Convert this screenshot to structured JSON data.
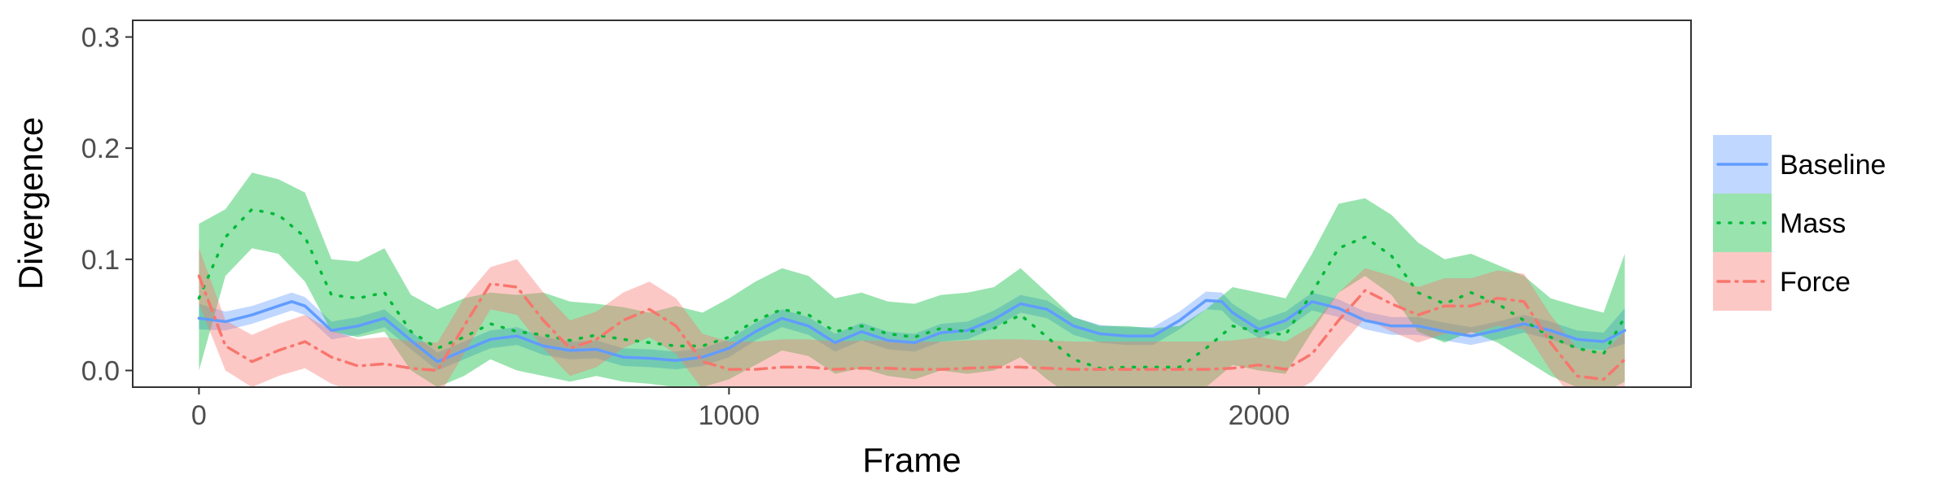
{
  "chart_data": {
    "type": "line",
    "title": "",
    "xlabel": "Frame",
    "ylabel": "Divergence",
    "xlim": [
      -125,
      2815
    ],
    "ylim": [
      -0.015,
      0.315
    ],
    "x_ticks": [
      0,
      1000,
      2000
    ],
    "x_tick_labels": [
      "0",
      "1000",
      "2000"
    ],
    "y_ticks": [
      0.0,
      0.1,
      0.2,
      0.3
    ],
    "y_tick_labels": [
      "0.0",
      "0.1",
      "0.2",
      "0.3"
    ],
    "grid": false,
    "legend_position": "right",
    "series": [
      {
        "name": "Baseline",
        "color": "#619cff",
        "dash": "solid",
        "x": [
          0,
          50,
          100,
          150,
          175,
          200,
          250,
          300,
          350,
          400,
          450,
          500,
          550,
          600,
          650,
          700,
          750,
          800,
          850,
          900,
          950,
          1000,
          1050,
          1100,
          1150,
          1200,
          1250,
          1300,
          1350,
          1400,
          1450,
          1500,
          1550,
          1600,
          1650,
          1700,
          1750,
          1800,
          1850,
          1900,
          1930,
          1950,
          2000,
          2050,
          2100,
          2150,
          2200,
          2250,
          2300,
          2350,
          2400,
          2450,
          2500,
          2550,
          2600,
          2650,
          2690
        ],
        "y": [
          0.047,
          0.044,
          0.05,
          0.058,
          0.062,
          0.058,
          0.036,
          0.04,
          0.047,
          0.027,
          0.008,
          0.018,
          0.028,
          0.031,
          0.022,
          0.018,
          0.019,
          0.012,
          0.011,
          0.009,
          0.012,
          0.02,
          0.035,
          0.047,
          0.04,
          0.025,
          0.035,
          0.027,
          0.025,
          0.034,
          0.036,
          0.046,
          0.06,
          0.055,
          0.04,
          0.033,
          0.031,
          0.031,
          0.045,
          0.063,
          0.062,
          0.052,
          0.037,
          0.045,
          0.062,
          0.056,
          0.045,
          0.04,
          0.04,
          0.035,
          0.031,
          0.036,
          0.042,
          0.036,
          0.028,
          0.026,
          0.036
        ],
        "lower": [
          0.037,
          0.036,
          0.042,
          0.05,
          0.054,
          0.05,
          0.028,
          0.032,
          0.039,
          0.019,
          0.0,
          0.01,
          0.02,
          0.023,
          0.014,
          0.01,
          0.011,
          0.004,
          0.003,
          0.001,
          0.004,
          0.012,
          0.027,
          0.039,
          0.032,
          0.017,
          0.027,
          0.019,
          0.017,
          0.026,
          0.028,
          0.038,
          0.052,
          0.047,
          0.032,
          0.025,
          0.023,
          0.023,
          0.037,
          0.055,
          0.054,
          0.044,
          0.029,
          0.037,
          0.054,
          0.048,
          0.037,
          0.032,
          0.032,
          0.027,
          0.023,
          0.028,
          0.034,
          0.028,
          0.02,
          0.018,
          0.024
        ],
        "upper": [
          0.06,
          0.053,
          0.058,
          0.066,
          0.07,
          0.066,
          0.044,
          0.048,
          0.055,
          0.035,
          0.016,
          0.026,
          0.036,
          0.039,
          0.03,
          0.026,
          0.027,
          0.02,
          0.019,
          0.017,
          0.02,
          0.028,
          0.043,
          0.055,
          0.048,
          0.033,
          0.043,
          0.035,
          0.033,
          0.042,
          0.044,
          0.054,
          0.068,
          0.063,
          0.048,
          0.041,
          0.039,
          0.039,
          0.053,
          0.071,
          0.07,
          0.06,
          0.045,
          0.053,
          0.07,
          0.064,
          0.053,
          0.048,
          0.048,
          0.043,
          0.039,
          0.044,
          0.05,
          0.044,
          0.036,
          0.034,
          0.056
        ]
      },
      {
        "name": "Mass",
        "color": "#00ba38",
        "dash": "dotted",
        "x": [
          0,
          50,
          100,
          150,
          200,
          250,
          300,
          350,
          400,
          450,
          500,
          550,
          600,
          650,
          700,
          750,
          800,
          850,
          900,
          950,
          1000,
          1050,
          1100,
          1150,
          1200,
          1250,
          1300,
          1350,
          1400,
          1450,
          1500,
          1550,
          1600,
          1650,
          1700,
          1750,
          1800,
          1850,
          1900,
          1950,
          2000,
          2050,
          2100,
          2150,
          2200,
          2250,
          2300,
          2350,
          2400,
          2450,
          2500,
          2550,
          2600,
          2650,
          2690
        ],
        "y": [
          0.065,
          0.12,
          0.145,
          0.14,
          0.12,
          0.068,
          0.065,
          0.07,
          0.035,
          0.02,
          0.03,
          0.042,
          0.035,
          0.032,
          0.027,
          0.032,
          0.028,
          0.025,
          0.022,
          0.022,
          0.03,
          0.045,
          0.055,
          0.05,
          0.035,
          0.04,
          0.033,
          0.03,
          0.038,
          0.035,
          0.038,
          0.05,
          0.03,
          0.01,
          0.002,
          0.003,
          0.003,
          0.003,
          0.02,
          0.04,
          0.035,
          0.032,
          0.07,
          0.11,
          0.12,
          0.103,
          0.07,
          0.06,
          0.07,
          0.06,
          0.045,
          0.03,
          0.02,
          0.015,
          0.048
        ],
        "lower": [
          0.0,
          0.085,
          0.11,
          0.105,
          0.08,
          0.035,
          0.03,
          0.035,
          0.0,
          -0.015,
          -0.005,
          0.01,
          0.0,
          -0.005,
          -0.01,
          -0.005,
          -0.01,
          -0.012,
          -0.015,
          -0.015,
          -0.008,
          0.005,
          0.018,
          0.013,
          -0.003,
          0.002,
          -0.005,
          -0.008,
          0.0,
          -0.003,
          0.0,
          0.012,
          -0.008,
          -0.025,
          -0.035,
          -0.035,
          -0.035,
          -0.035,
          -0.015,
          0.005,
          0.0,
          -0.003,
          0.035,
          0.07,
          0.085,
          0.068,
          0.035,
          0.025,
          0.035,
          0.025,
          0.01,
          -0.005,
          -0.015,
          -0.02,
          -0.01
        ],
        "upper": [
          0.132,
          0.145,
          0.178,
          0.172,
          0.16,
          0.1,
          0.098,
          0.11,
          0.068,
          0.055,
          0.065,
          0.07,
          0.068,
          0.07,
          0.062,
          0.06,
          0.057,
          0.052,
          0.058,
          0.052,
          0.065,
          0.08,
          0.092,
          0.085,
          0.065,
          0.07,
          0.062,
          0.06,
          0.068,
          0.07,
          0.075,
          0.092,
          0.07,
          0.048,
          0.04,
          0.04,
          0.038,
          0.04,
          0.055,
          0.075,
          0.07,
          0.065,
          0.105,
          0.15,
          0.155,
          0.14,
          0.115,
          0.1,
          0.105,
          0.095,
          0.085,
          0.065,
          0.058,
          0.052,
          0.105
        ]
      },
      {
        "name": "Force",
        "color": "#f8766d",
        "dash": "dashdot",
        "x": [
          0,
          50,
          100,
          150,
          200,
          250,
          300,
          350,
          400,
          450,
          500,
          550,
          600,
          650,
          700,
          750,
          800,
          850,
          900,
          950,
          1000,
          1050,
          1100,
          1150,
          1200,
          1250,
          1300,
          1350,
          1400,
          1450,
          1500,
          1550,
          1600,
          1650,
          1700,
          1750,
          1800,
          1850,
          1900,
          1950,
          2000,
          2050,
          2100,
          2150,
          2200,
          2250,
          2300,
          2350,
          2400,
          2450,
          2500,
          2550,
          2600,
          2650,
          2690
        ],
        "y": [
          0.085,
          0.022,
          0.008,
          0.018,
          0.026,
          0.012,
          0.004,
          0.006,
          0.002,
          0.0,
          0.04,
          0.078,
          0.075,
          0.045,
          0.02,
          0.028,
          0.045,
          0.055,
          0.04,
          0.008,
          0.001,
          0.001,
          0.003,
          0.003,
          0.001,
          0.002,
          0.002,
          0.001,
          0.001,
          0.002,
          0.003,
          0.003,
          0.002,
          0.001,
          0.001,
          0.001,
          0.001,
          0.001,
          0.001,
          0.002,
          0.005,
          0.001,
          0.015,
          0.045,
          0.072,
          0.06,
          0.05,
          0.058,
          0.058,
          0.065,
          0.062,
          0.025,
          -0.005,
          -0.008,
          0.01
        ],
        "lower": [
          0.06,
          0.0,
          -0.015,
          -0.005,
          0.002,
          -0.012,
          -0.02,
          -0.018,
          -0.022,
          -0.025,
          0.015,
          0.055,
          0.05,
          0.02,
          -0.005,
          0.003,
          0.02,
          0.03,
          0.015,
          -0.017,
          -0.024,
          -0.024,
          -0.022,
          -0.022,
          -0.024,
          -0.023,
          -0.023,
          -0.024,
          -0.024,
          -0.023,
          -0.022,
          -0.022,
          -0.023,
          -0.024,
          -0.024,
          -0.024,
          -0.024,
          -0.024,
          -0.024,
          -0.023,
          -0.02,
          -0.024,
          -0.01,
          0.02,
          0.047,
          0.035,
          0.025,
          0.033,
          0.033,
          0.04,
          0.037,
          0.0,
          -0.03,
          -0.033,
          -0.02
        ],
        "upper": [
          0.11,
          0.045,
          0.032,
          0.042,
          0.05,
          0.036,
          0.028,
          0.03,
          0.026,
          0.025,
          0.065,
          0.093,
          0.1,
          0.07,
          0.045,
          0.053,
          0.07,
          0.08,
          0.065,
          0.033,
          0.026,
          0.026,
          0.028,
          0.028,
          0.026,
          0.027,
          0.027,
          0.026,
          0.026,
          0.027,
          0.028,
          0.028,
          0.027,
          0.026,
          0.026,
          0.026,
          0.026,
          0.026,
          0.026,
          0.027,
          0.03,
          0.026,
          0.04,
          0.07,
          0.092,
          0.085,
          0.075,
          0.083,
          0.083,
          0.09,
          0.087,
          0.05,
          0.02,
          0.017,
          0.035
        ]
      }
    ]
  }
}
